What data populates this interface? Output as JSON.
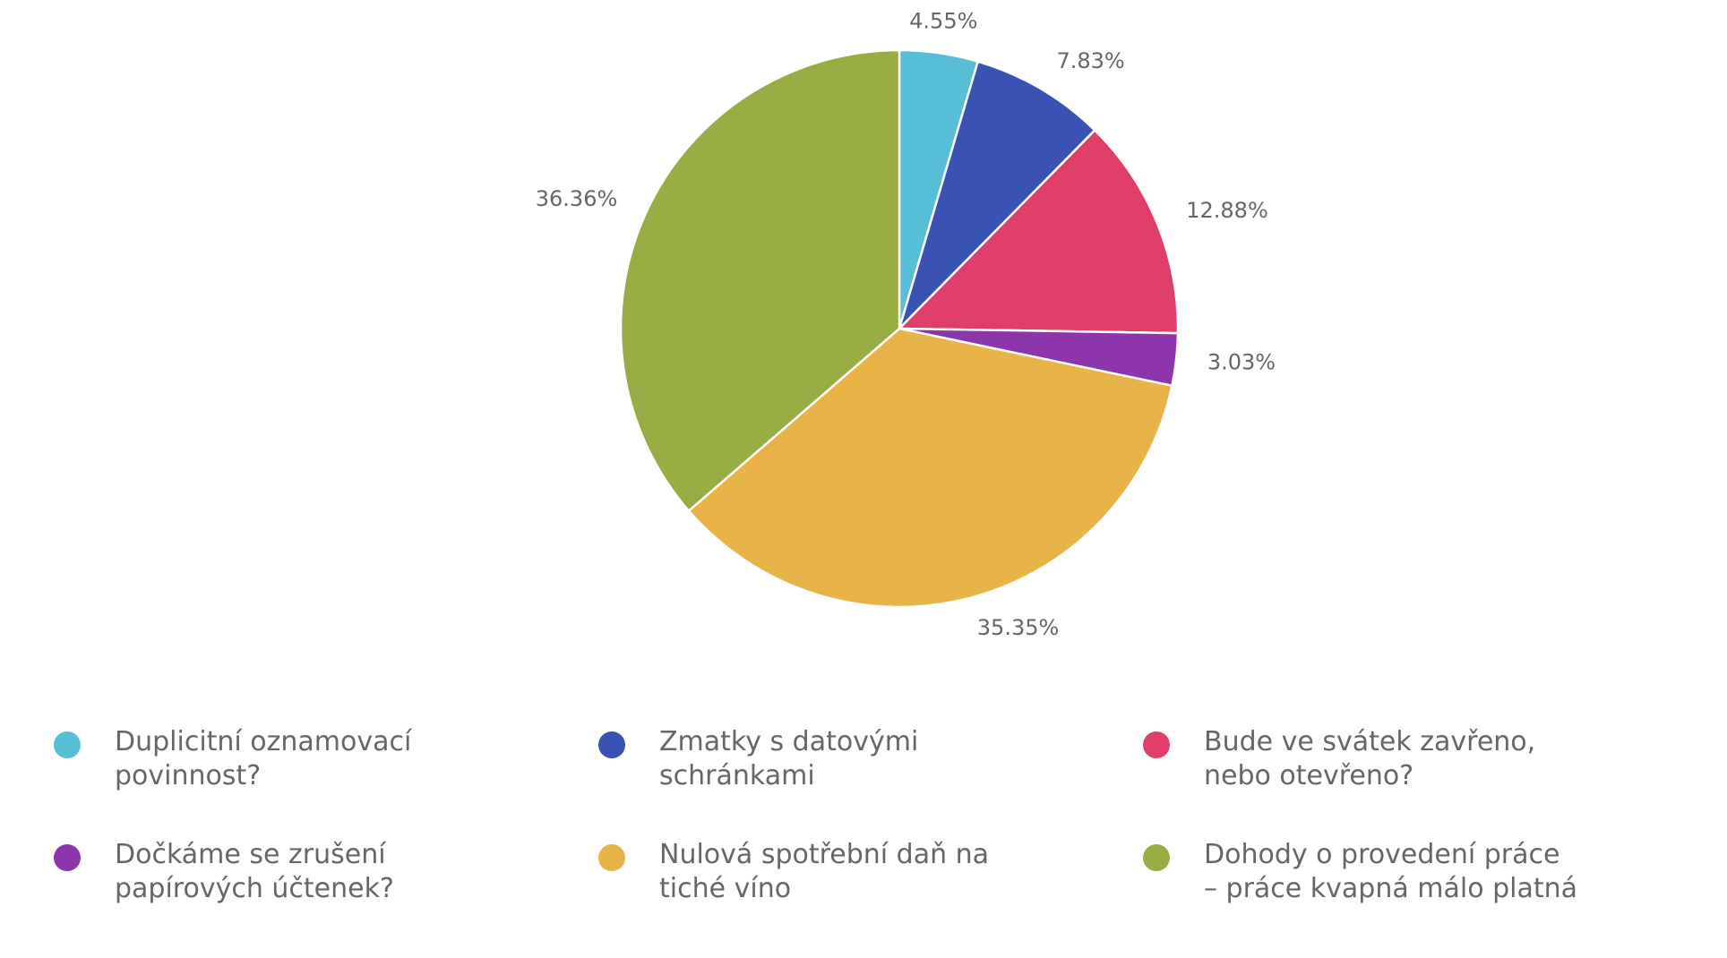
{
  "chart_data": {
    "type": "pie",
    "title": "",
    "legend_position": "bottom",
    "start_angle_deg": 0,
    "direction": "clockwise",
    "series": [
      {
        "name": "Duplicitní oznamovací povinnost?",
        "value": 4.55,
        "label": "4.55%",
        "color": "#56bfd6"
      },
      {
        "name": "Zmatky s datovými schránkami",
        "value": 7.83,
        "label": "7.83%",
        "color": "#3a52b3"
      },
      {
        "name": "Bude ve svátek zavřeno, nebo otevřeno?",
        "value": 12.88,
        "label": "12.88%",
        "color": "#df3e68"
      },
      {
        "name": "Dočkáme se zrušení papírových účtenek?",
        "value": 3.03,
        "label": "3.03%",
        "color": "#8d35ab"
      },
      {
        "name": "Nulová spotřební daň na tiché víno",
        "value": 35.35,
        "label": "35.35%",
        "color": "#e8b448"
      },
      {
        "name": "Dohody o provedení práce – práce kvapná málo platná",
        "value": 36.36,
        "label": "36.36%",
        "color": "#97ad43"
      }
    ]
  }
}
